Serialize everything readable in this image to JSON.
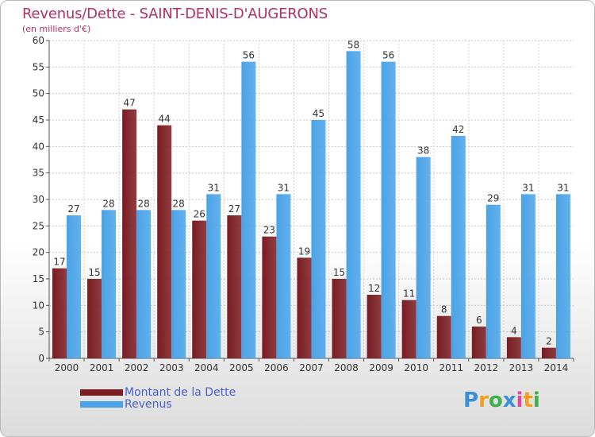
{
  "chart_data": {
    "type": "bar",
    "title": "Revenus/Dette - SAINT-DENIS-D'AUGERONS",
    "subtitle": "(en milliers d'€)",
    "categories": [
      "2000",
      "2001",
      "2002",
      "2003",
      "2004",
      "2005",
      "2006",
      "2007",
      "2008",
      "2009",
      "2010",
      "2011",
      "2012",
      "2013",
      "2014"
    ],
    "series": [
      {
        "name": "Montant de la Dette",
        "values": [
          17,
          15,
          47,
          44,
          26,
          27,
          23,
          19,
          15,
          12,
          11,
          8,
          6,
          4,
          2
        ],
        "color": "#7a1c22"
      },
      {
        "name": "Revenus",
        "values": [
          27,
          28,
          28,
          28,
          31,
          56,
          31,
          45,
          58,
          56,
          38,
          42,
          29,
          31,
          31
        ],
        "color": "#4aa3e8"
      }
    ],
    "ylim": [
      0,
      60
    ],
    "yticks": [
      0,
      5,
      10,
      15,
      20,
      25,
      30,
      35,
      40,
      45,
      50,
      55,
      60
    ],
    "grid": true,
    "legend": "bottom-left"
  },
  "logo": {
    "letters": [
      "P",
      "r",
      "o",
      "x",
      "i",
      "t",
      "i"
    ],
    "colors": [
      "#3b8fd8",
      "#f0a020",
      "#3fb04a",
      "#3b8fd8",
      "#e04a9a",
      "#f0a020",
      "#3fb04a"
    ]
  }
}
